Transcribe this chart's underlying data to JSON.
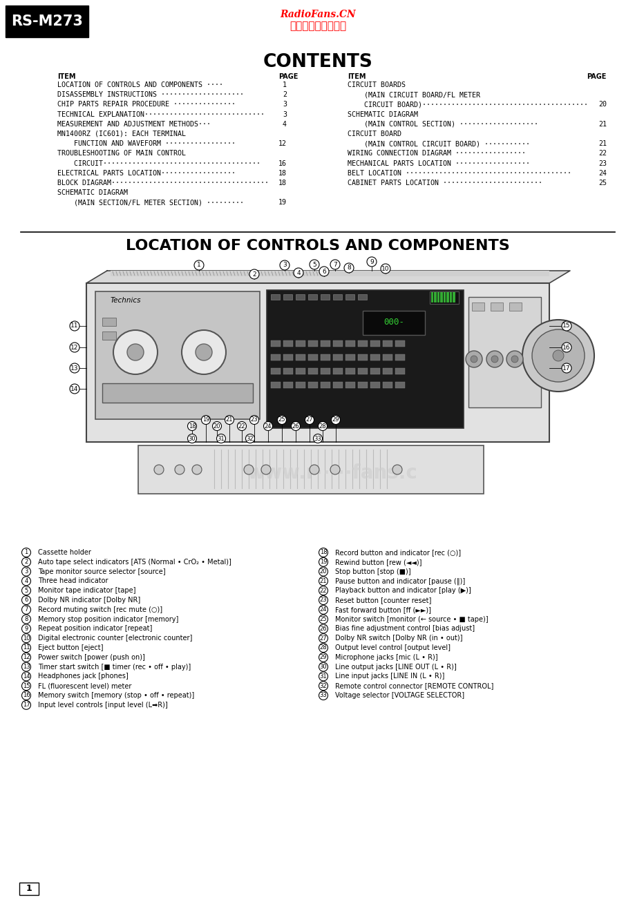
{
  "bg_color": "#ffffff",
  "header_radiofans": "RadioFans.CN",
  "header_chinese": "收音机爱好者资料库",
  "model": "RS-M273",
  "title_contents": "CONTENTS",
  "col1_header_item": "ITEM",
  "col1_header_page": "PAGE",
  "col2_header_item": "ITEM",
  "col2_header_page": "PAGE",
  "contents_left": [
    [
      "LOCATION OF CONTROLS AND COMPONENTS ····",
      "1"
    ],
    [
      "DISASSEMBLY INSTRUCTIONS ····················",
      "2"
    ],
    [
      "CHIP PARTS REPAIR PROCEDURE ···············",
      "3"
    ],
    [
      "TECHNICAL EXPLANATION·····························",
      "3"
    ],
    [
      "MEASUREMENT AND ADJUSTMENT METHODS···",
      "4"
    ],
    [
      "MN1400RZ (IC601): EACH TERMINAL",
      ""
    ],
    [
      "    FUNCTION AND WAVEFORM ·················",
      "12"
    ],
    [
      "TROUBLESHOOTING OF MAIN CONTROL",
      ""
    ],
    [
      "    CIRCUIT······································",
      "16"
    ],
    [
      "ELECTRICAL PARTS LOCATION··················",
      "18"
    ],
    [
      "BLOCK DIAGRAM······································",
      "18"
    ],
    [
      "SCHEMATIC DIAGRAM",
      ""
    ],
    [
      "    (MAIN SECTION/FL METER SECTION) ·········",
      "19"
    ]
  ],
  "contents_right": [
    [
      "CIRCUIT BOARDS",
      ""
    ],
    [
      "    (MAIN CIRCUIT BOARD/FL METER",
      ""
    ],
    [
      "    CIRCUIT BOARD)········································",
      "20"
    ],
    [
      "SCHEMATIC DIAGRAM",
      ""
    ],
    [
      "    (MAIN CONTROL SECTION) ···················",
      "21"
    ],
    [
      "CIRCUIT BOARD",
      ""
    ],
    [
      "    (MAIN CONTROL CIRCUIT BOARD) ···········",
      "21"
    ],
    [
      "WIRING CONNECTION DIAGRAM ·················",
      "22"
    ],
    [
      "MECHANICAL PARTS LOCATION ··················",
      "23"
    ],
    [
      "BELT LOCATION ········································",
      "24"
    ],
    [
      "CABINET PARTS LOCATION ························",
      "25"
    ]
  ],
  "section2_title": "LOCATION OF CONTROLS AND COMPONENTS",
  "legend_col1": [
    [
      1,
      "Cassette holder"
    ],
    [
      2,
      "Auto tape select indicators [ATS (Normal • CrO₂ • Metal)]"
    ],
    [
      3,
      "Tape monitor source selector [source]"
    ],
    [
      4,
      "Three head indicator"
    ],
    [
      5,
      "Monitor tape indicator [tape]"
    ],
    [
      6,
      "Dolby NR indicator [Dolby NR]"
    ],
    [
      7,
      "Record muting switch [rec mute (○)]"
    ],
    [
      8,
      "Memory stop position indicator [memory]"
    ],
    [
      9,
      "Repeat position indicator [repeat]"
    ],
    [
      10,
      "Digital electronic counter [electronic counter]"
    ],
    [
      11,
      "Eject button [eject]"
    ],
    [
      12,
      "Power switch [power (push on)]"
    ],
    [
      13,
      "Timer start switch [■ timer (rec • off • play)]"
    ],
    [
      14,
      "Headphones jack [phones]"
    ],
    [
      15,
      "FL (fluorescent level) meter"
    ],
    [
      16,
      "Memory switch [memory (stop • off • repeat)]"
    ],
    [
      17,
      "Input level controls [input level (L➡R)]"
    ]
  ],
  "legend_col2": [
    [
      18,
      "Record button and indicator [rec (○)]"
    ],
    [
      19,
      "Rewind button [rew (◄◄)]"
    ],
    [
      20,
      "Stop button [stop (■)]"
    ],
    [
      21,
      "Pause button and indicator [pause (‖)]"
    ],
    [
      22,
      "Playback button and indicator [play (▶)]"
    ],
    [
      23,
      "Reset button [counter reset]"
    ],
    [
      24,
      "Fast forward button [ff (►►)]"
    ],
    [
      25,
      "Monitor switch [monitor (← source • ■ tape)]"
    ],
    [
      26,
      "Bias fine adjustment control [bias adjust]"
    ],
    [
      27,
      "Dolby NR switch [Dolby NR (in • out)]"
    ],
    [
      28,
      "Output level control [output level]"
    ],
    [
      29,
      "Microphone jacks [mic (L • R)]"
    ],
    [
      30,
      "Line output jacks [LINE OUT (L • R)]"
    ],
    [
      31,
      "Line input jacks [LINE IN (L • R)]"
    ],
    [
      32,
      "Remote control connector [REMOTE CONTROL]"
    ],
    [
      33,
      "Voltage selector [VOLTAGE SELECTOR]"
    ]
  ],
  "watermark_text": "www.r••••••fans.c",
  "page_num": "1",
  "deck_image_placeholder": true
}
